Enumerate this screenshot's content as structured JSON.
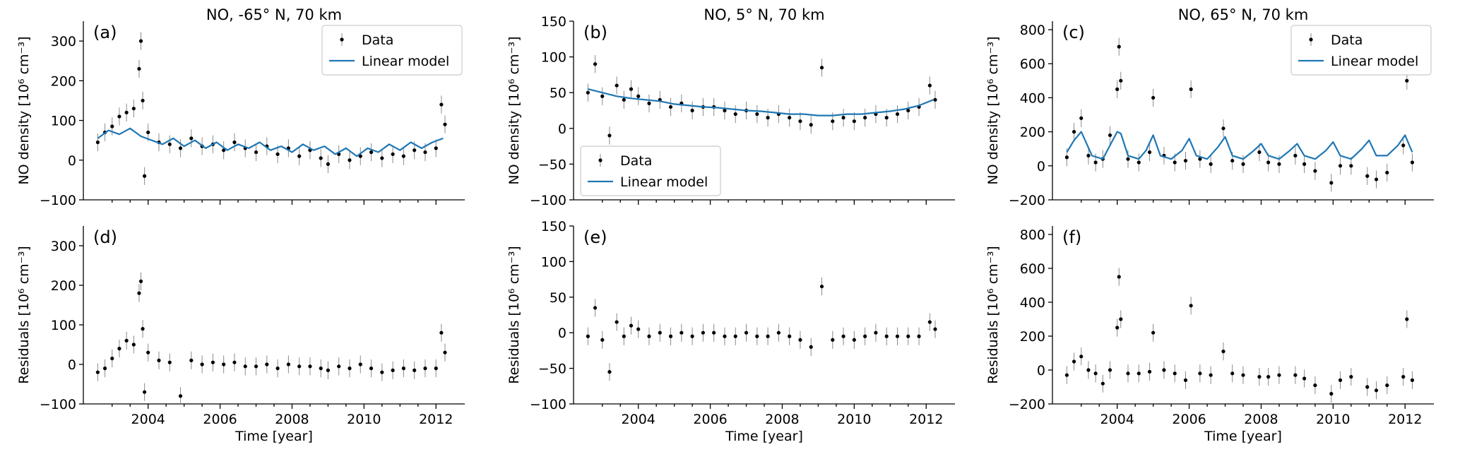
{
  "colors": {
    "model": "#1f77b4",
    "data": "#000000",
    "errorbar": "#8a8a8a",
    "axis": "#000000"
  },
  "chart_data": [
    {
      "id": "a",
      "letter": "(a)",
      "type": "line",
      "title": "NO, -65° N, 70 km",
      "ylabel": "NO density [10⁶ cm⁻³]",
      "xlabel": "",
      "xlim": [
        2002.2,
        2012.8
      ],
      "ylim": [
        -100,
        350
      ],
      "yticks": [
        -100,
        0,
        100,
        200,
        300
      ],
      "xticks": [
        2004,
        2006,
        2008,
        2010,
        2012
      ],
      "show_xticklabels": false,
      "legend": {
        "placement": "top-right",
        "entries": [
          "Data",
          "Linear model"
        ]
      },
      "series": [
        {
          "name": "Data",
          "x": [
            2002.6,
            2002.8,
            2003.0,
            2003.2,
            2003.4,
            2003.6,
            2003.75,
            2003.8,
            2003.85,
            2003.9,
            2004.0,
            2004.3,
            2004.6,
            2004.9,
            2005.2,
            2005.5,
            2005.8,
            2006.1,
            2006.4,
            2006.7,
            2007.0,
            2007.3,
            2007.6,
            2007.9,
            2008.2,
            2008.5,
            2008.8,
            2009.0,
            2009.3,
            2009.6,
            2009.9,
            2010.2,
            2010.5,
            2010.8,
            2011.1,
            2011.4,
            2011.7,
            2012.0,
            2012.15,
            2012.25
          ],
          "y": [
            45,
            70,
            85,
            110,
            120,
            130,
            230,
            300,
            150,
            -40,
            70,
            45,
            40,
            30,
            55,
            35,
            40,
            25,
            45,
            30,
            20,
            35,
            15,
            30,
            10,
            25,
            5,
            -10,
            15,
            0,
            10,
            20,
            5,
            15,
            10,
            25,
            20,
            30,
            140,
            90
          ]
        },
        {
          "name": "Linear model",
          "x": [
            2002.6,
            2002.9,
            2003.2,
            2003.5,
            2003.8,
            2004.1,
            2004.4,
            2004.7,
            2005.0,
            2005.3,
            2005.6,
            2005.9,
            2006.2,
            2006.5,
            2006.8,
            2007.1,
            2007.4,
            2007.7,
            2008.0,
            2008.3,
            2008.6,
            2008.9,
            2009.2,
            2009.5,
            2009.8,
            2010.1,
            2010.4,
            2010.7,
            2011.0,
            2011.3,
            2011.6,
            2011.9,
            2012.2
          ],
          "y": [
            55,
            75,
            65,
            80,
            60,
            50,
            40,
            55,
            35,
            50,
            30,
            45,
            25,
            40,
            30,
            45,
            25,
            35,
            20,
            40,
            25,
            35,
            15,
            30,
            10,
            30,
            20,
            40,
            25,
            45,
            30,
            45,
            55
          ]
        }
      ]
    },
    {
      "id": "b",
      "letter": "(b)",
      "type": "line",
      "title": "NO, 5° N, 70 km",
      "ylabel": "NO density [10⁶ cm⁻³]",
      "xlabel": "",
      "xlim": [
        2002.2,
        2012.8
      ],
      "ylim": [
        -100,
        150
      ],
      "yticks": [
        -100,
        -50,
        0,
        50,
        100,
        150
      ],
      "xticks": [
        2004,
        2006,
        2008,
        2010,
        2012
      ],
      "show_xticklabels": false,
      "legend": {
        "placement": "lower-left",
        "entries": [
          "Data",
          "Linear model"
        ]
      },
      "series": [
        {
          "name": "Data",
          "x": [
            2002.6,
            2002.8,
            2003.0,
            2003.2,
            2003.4,
            2003.6,
            2003.8,
            2004.0,
            2004.3,
            2004.6,
            2004.9,
            2005.2,
            2005.5,
            2005.8,
            2006.1,
            2006.4,
            2006.7,
            2007.0,
            2007.3,
            2007.6,
            2007.9,
            2008.2,
            2008.5,
            2008.8,
            2009.1,
            2009.4,
            2009.7,
            2010.0,
            2010.3,
            2010.6,
            2010.9,
            2011.2,
            2011.5,
            2011.8,
            2012.1,
            2012.25
          ],
          "y": [
            50,
            90,
            45,
            -10,
            60,
            40,
            55,
            45,
            35,
            40,
            30,
            35,
            25,
            30,
            30,
            25,
            20,
            25,
            20,
            15,
            20,
            15,
            10,
            5,
            85,
            10,
            15,
            10,
            15,
            20,
            15,
            20,
            25,
            30,
            60,
            40
          ]
        },
        {
          "name": "Linear model",
          "x": [
            2002.6,
            2003.0,
            2003.4,
            2003.8,
            2004.2,
            2004.6,
            2005.0,
            2005.4,
            2005.8,
            2006.2,
            2006.6,
            2007.0,
            2007.4,
            2007.8,
            2008.2,
            2008.6,
            2009.0,
            2009.4,
            2009.8,
            2010.2,
            2010.6,
            2011.0,
            2011.4,
            2011.8,
            2012.2
          ],
          "y": [
            55,
            50,
            45,
            42,
            40,
            38,
            34,
            32,
            30,
            29,
            27,
            25,
            24,
            22,
            20,
            20,
            18,
            18,
            20,
            20,
            22,
            24,
            27,
            32,
            40
          ]
        }
      ]
    },
    {
      "id": "c",
      "letter": "(c)",
      "type": "line",
      "title": "NO, 65° N, 70 km",
      "ylabel": "NO density [10⁶ cm⁻³]",
      "xlabel": "",
      "xlim": [
        2002.2,
        2012.8
      ],
      "ylim": [
        -200,
        850
      ],
      "yticks": [
        -200,
        0,
        200,
        400,
        600,
        800
      ],
      "xticks": [
        2004,
        2006,
        2008,
        2010,
        2012
      ],
      "show_xticklabels": false,
      "legend": {
        "placement": "top-right",
        "entries": [
          "Data",
          "Linear model"
        ]
      },
      "series": [
        {
          "name": "Data",
          "x": [
            2002.6,
            2002.8,
            2003.0,
            2003.2,
            2003.4,
            2003.6,
            2003.8,
            2004.0,
            2004.05,
            2004.1,
            2004.3,
            2004.6,
            2004.9,
            2005.0,
            2005.3,
            2005.6,
            2005.9,
            2006.05,
            2006.3,
            2006.6,
            2006.95,
            2007.2,
            2007.5,
            2007.95,
            2008.2,
            2008.5,
            2008.95,
            2009.2,
            2009.5,
            2009.95,
            2010.2,
            2010.5,
            2010.95,
            2011.2,
            2011.5,
            2011.95,
            2012.05,
            2012.2
          ],
          "y": [
            50,
            200,
            280,
            60,
            20,
            40,
            180,
            450,
            700,
            500,
            40,
            20,
            80,
            400,
            60,
            20,
            30,
            450,
            40,
            10,
            220,
            30,
            10,
            80,
            20,
            10,
            60,
            10,
            -30,
            -100,
            0,
            0,
            -60,
            -80,
            -40,
            120,
            500,
            20
          ]
        },
        {
          "name": "Linear model",
          "x": [
            2002.6,
            2002.8,
            2003.0,
            2003.3,
            2003.6,
            2003.8,
            2004.0,
            2004.1,
            2004.3,
            2004.6,
            2004.8,
            2005.0,
            2005.2,
            2005.5,
            2005.8,
            2006.0,
            2006.2,
            2006.5,
            2006.8,
            2007.0,
            2007.2,
            2007.5,
            2007.8,
            2008.0,
            2008.2,
            2008.5,
            2008.8,
            2009.0,
            2009.2,
            2009.5,
            2009.8,
            2010.0,
            2010.2,
            2010.5,
            2010.8,
            2011.0,
            2011.2,
            2011.5,
            2011.8,
            2012.0,
            2012.2
          ],
          "y": [
            80,
            150,
            200,
            60,
            40,
            120,
            200,
            190,
            60,
            40,
            90,
            180,
            60,
            40,
            90,
            160,
            60,
            40,
            110,
            170,
            60,
            40,
            90,
            130,
            60,
            40,
            90,
            130,
            60,
            40,
            90,
            140,
            60,
            40,
            100,
            150,
            60,
            60,
            120,
            180,
            80
          ]
        }
      ]
    },
    {
      "id": "d",
      "letter": "(d)",
      "type": "scatter",
      "title": "",
      "ylabel": "Residuals [10⁶ cm⁻³]",
      "xlabel": "Time [year]",
      "xlim": [
        2002.2,
        2012.8
      ],
      "ylim": [
        -100,
        350
      ],
      "yticks": [
        -100,
        0,
        100,
        200,
        300
      ],
      "xticks": [
        2004,
        2006,
        2008,
        2010,
        2012
      ],
      "xticklabels": [
        "2004",
        "2006",
        "2008",
        "2010",
        "2012"
      ],
      "show_xticklabels": true,
      "legend": null,
      "series": [
        {
          "name": "Data",
          "x": [
            2002.6,
            2002.8,
            2003.0,
            2003.2,
            2003.4,
            2003.6,
            2003.75,
            2003.8,
            2003.85,
            2003.9,
            2004.0,
            2004.3,
            2004.6,
            2004.9,
            2005.2,
            2005.5,
            2005.8,
            2006.1,
            2006.4,
            2006.7,
            2007.0,
            2007.3,
            2007.6,
            2007.9,
            2008.2,
            2008.5,
            2008.8,
            2009.0,
            2009.3,
            2009.6,
            2009.9,
            2010.2,
            2010.5,
            2010.8,
            2011.1,
            2011.4,
            2011.7,
            2012.0,
            2012.15,
            2012.25
          ],
          "y": [
            -20,
            -10,
            15,
            40,
            60,
            50,
            180,
            210,
            90,
            -70,
            30,
            10,
            5,
            -80,
            10,
            0,
            5,
            0,
            5,
            -5,
            -5,
            0,
            -10,
            0,
            -5,
            -5,
            -10,
            -15,
            -5,
            -10,
            0,
            -10,
            -20,
            -15,
            -10,
            -15,
            -10,
            -10,
            80,
            30
          ]
        }
      ]
    },
    {
      "id": "e",
      "letter": "(e)",
      "type": "scatter",
      "title": "",
      "ylabel": "Residuals [10⁶ cm⁻³]",
      "xlabel": "Time [year]",
      "xlim": [
        2002.2,
        2012.8
      ],
      "ylim": [
        -100,
        150
      ],
      "yticks": [
        -100,
        -50,
        0,
        50,
        100,
        150
      ],
      "xticks": [
        2004,
        2006,
        2008,
        2010,
        2012
      ],
      "xticklabels": [
        "2004",
        "2006",
        "2008",
        "2010",
        "2012"
      ],
      "show_xticklabels": true,
      "legend": null,
      "series": [
        {
          "name": "Data",
          "x": [
            2002.6,
            2002.8,
            2003.0,
            2003.2,
            2003.4,
            2003.6,
            2003.8,
            2004.0,
            2004.3,
            2004.6,
            2004.9,
            2005.2,
            2005.5,
            2005.8,
            2006.1,
            2006.4,
            2006.7,
            2007.0,
            2007.3,
            2007.6,
            2007.9,
            2008.2,
            2008.5,
            2008.8,
            2009.1,
            2009.4,
            2009.7,
            2010.0,
            2010.3,
            2010.6,
            2010.9,
            2011.2,
            2011.5,
            2011.8,
            2012.1,
            2012.25
          ],
          "y": [
            -5,
            35,
            -10,
            -55,
            15,
            -5,
            10,
            5,
            -5,
            0,
            -5,
            0,
            -5,
            0,
            0,
            -5,
            -5,
            0,
            -5,
            -5,
            0,
            -5,
            -10,
            -20,
            65,
            -10,
            -5,
            -10,
            -5,
            0,
            -5,
            -5,
            -5,
            -5,
            15,
            5
          ]
        }
      ]
    },
    {
      "id": "f",
      "letter": "(f)",
      "type": "scatter",
      "title": "",
      "ylabel": "Residuals [10⁶ cm⁻³]",
      "xlabel": "Time [year]",
      "xlim": [
        2002.2,
        2012.8
      ],
      "ylim": [
        -200,
        850
      ],
      "yticks": [
        -200,
        0,
        200,
        400,
        600,
        800
      ],
      "xticks": [
        2004,
        2006,
        2008,
        2010,
        2012
      ],
      "xticklabels": [
        "2004",
        "2006",
        "2008",
        "2010",
        "2012"
      ],
      "show_xticklabels": true,
      "legend": null,
      "series": [
        {
          "name": "Data",
          "x": [
            2002.6,
            2002.8,
            2003.0,
            2003.2,
            2003.4,
            2003.6,
            2003.8,
            2004.0,
            2004.05,
            2004.1,
            2004.3,
            2004.6,
            2004.9,
            2005.0,
            2005.3,
            2005.6,
            2005.9,
            2006.05,
            2006.3,
            2006.6,
            2006.95,
            2007.2,
            2007.5,
            2007.95,
            2008.2,
            2008.5,
            2008.95,
            2009.2,
            2009.5,
            2009.95,
            2010.2,
            2010.5,
            2010.95,
            2011.2,
            2011.5,
            2011.95,
            2012.05,
            2012.2
          ],
          "y": [
            -30,
            50,
            80,
            0,
            -20,
            -80,
            0,
            250,
            550,
            300,
            -20,
            -20,
            -10,
            220,
            0,
            -20,
            -60,
            380,
            -20,
            -30,
            110,
            -20,
            -30,
            -40,
            -40,
            -30,
            -30,
            -50,
            -90,
            -140,
            -60,
            -40,
            -100,
            -120,
            -90,
            -40,
            300,
            -60
          ]
        }
      ]
    }
  ]
}
